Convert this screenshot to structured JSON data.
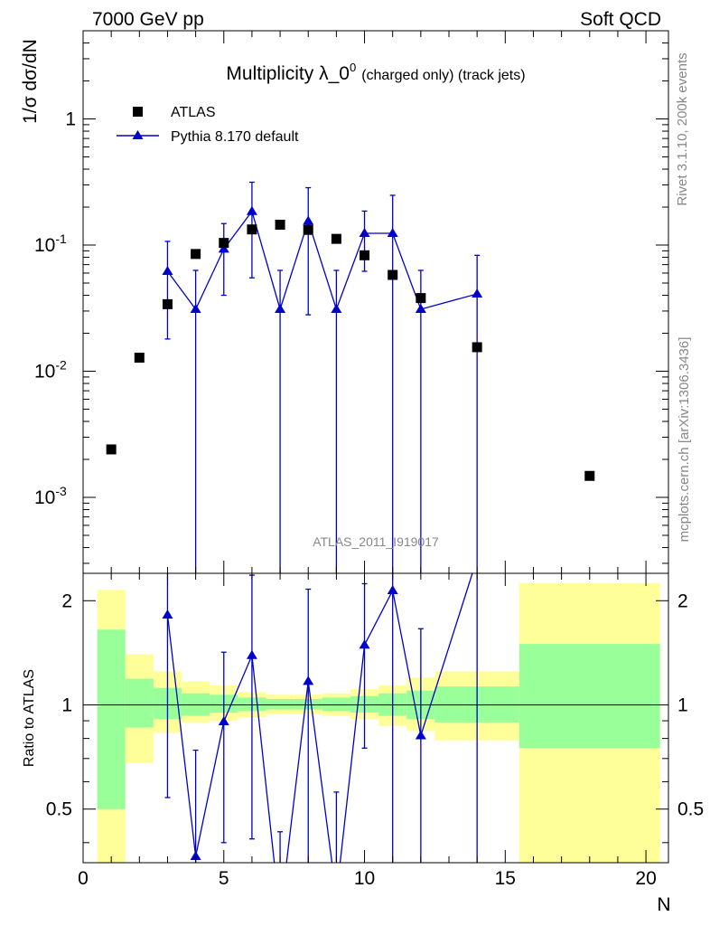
{
  "header": {
    "left": "7000 GeV pp",
    "right": "Soft QCD"
  },
  "side": {
    "rivet": "Rivet 3.1.10,  200k events",
    "url": "mcplots.cern.ch [arXiv:1306.3436]"
  },
  "colors": {
    "data": "#000000",
    "mc": "#0000cc",
    "band_inner": "#99ff99",
    "band_outer": "#ffff99"
  },
  "chart_data": [
    {
      "type": "scatter",
      "title_main": "Multiplicity λ_0",
      "title_sup": "0",
      "title_small": "(charged only) (track jets)",
      "ylabel": "1/σ dσ/dN",
      "watermark": "ATLAS_2011_I919017",
      "yscale": "log",
      "ylim": [
        0.00025,
        5
      ],
      "xlim": [
        0,
        20.8
      ],
      "yticks": [
        {
          "v": 0.001,
          "base": "10",
          "exp": "-3"
        },
        {
          "v": 0.01,
          "base": "10",
          "exp": "-2"
        },
        {
          "v": 0.1,
          "base": "10",
          "exp": "-1"
        },
        {
          "v": 1,
          "base": "1",
          "exp": ""
        }
      ],
      "legend": [
        {
          "label": "ATLAS",
          "marker": "square"
        },
        {
          "label": "Pythia 8.170 default",
          "marker": "triangle"
        }
      ],
      "series": [
        {
          "name": "ATLAS",
          "points": [
            {
              "x": 1,
              "y": 0.0024
            },
            {
              "x": 2,
              "y": 0.0128
            },
            {
              "x": 3,
              "y": 0.034
            },
            {
              "x": 4,
              "y": 0.085
            },
            {
              "x": 5,
              "y": 0.104
            },
            {
              "x": 6,
              "y": 0.133
            },
            {
              "x": 7,
              "y": 0.145
            },
            {
              "x": 8,
              "y": 0.132
            },
            {
              "x": 9,
              "y": 0.112
            },
            {
              "x": 10,
              "y": 0.083
            },
            {
              "x": 11,
              "y": 0.058
            },
            {
              "x": 12,
              "y": 0.038
            },
            {
              "x": 14,
              "y": 0.0155
            },
            {
              "x": 18,
              "y": 0.00148
            }
          ]
        },
        {
          "name": "Pythia 8.170 default",
          "points": [
            {
              "x": 3,
              "y": 0.062,
              "lo": 0.018,
              "hi": 0.107
            },
            {
              "x": 4,
              "y": 0.031,
              "lo": 1e-05,
              "hi": 0.063
            },
            {
              "x": 5,
              "y": 0.093,
              "lo": 0.04,
              "hi": 0.148
            },
            {
              "x": 6,
              "y": 0.185,
              "lo": 0.055,
              "hi": 0.315
            },
            {
              "x": 7,
              "y": 0.031,
              "lo": 1e-05,
              "hi": 0.063
            },
            {
              "x": 8,
              "y": 0.155,
              "lo": 0.028,
              "hi": 0.285
            },
            {
              "x": 9,
              "y": 0.031,
              "lo": 1e-05,
              "hi": 0.063
            },
            {
              "x": 10,
              "y": 0.124,
              "lo": 0.062,
              "hi": 0.186
            },
            {
              "x": 11,
              "y": 0.124,
              "lo": 1e-05,
              "hi": 0.248
            },
            {
              "x": 12,
              "y": 0.031,
              "lo": 1e-05,
              "hi": 0.063
            },
            {
              "x": 14,
              "y": 0.041,
              "lo": 1e-05,
              "hi": 0.083
            }
          ]
        }
      ]
    },
    {
      "type": "line",
      "ylabel": "Ratio to ATLAS",
      "xlabel": "N",
      "yscale": "log",
      "ylim": [
        0.35,
        2.4
      ],
      "xlim": [
        0,
        20.8
      ],
      "yticks": [
        0.5,
        1,
        2
      ],
      "xticks": [
        0,
        5,
        10,
        15,
        20
      ],
      "reference": 1,
      "bands": [
        {
          "x0": 0.5,
          "x1": 1.5,
          "in_lo": 0.5,
          "in_hi": 1.65,
          "out_lo": 0.3,
          "out_hi": 2.15
        },
        {
          "x0": 1.5,
          "x1": 2.5,
          "in_lo": 0.86,
          "in_hi": 1.19,
          "out_lo": 0.68,
          "out_hi": 1.4
        },
        {
          "x0": 2.5,
          "x1": 3.5,
          "in_lo": 0.91,
          "in_hi": 1.12,
          "out_lo": 0.83,
          "out_hi": 1.25
        },
        {
          "x0": 3.5,
          "x1": 4.5,
          "in_lo": 0.93,
          "in_hi": 1.08,
          "out_lo": 0.89,
          "out_hi": 1.17
        },
        {
          "x0": 4.5,
          "x1": 5.5,
          "in_lo": 0.95,
          "in_hi": 1.07,
          "out_lo": 0.9,
          "out_hi": 1.14
        },
        {
          "x0": 5.5,
          "x1": 6.5,
          "in_lo": 0.96,
          "in_hi": 1.05,
          "out_lo": 0.92,
          "out_hi": 1.09
        },
        {
          "x0": 6.5,
          "x1": 7.5,
          "in_lo": 0.97,
          "in_hi": 1.04,
          "out_lo": 0.94,
          "out_hi": 1.07
        },
        {
          "x0": 7.5,
          "x1": 8.5,
          "in_lo": 0.97,
          "in_hi": 1.04,
          "out_lo": 0.94,
          "out_hi": 1.07
        },
        {
          "x0": 8.5,
          "x1": 9.5,
          "in_lo": 0.96,
          "in_hi": 1.05,
          "out_lo": 0.93,
          "out_hi": 1.08
        },
        {
          "x0": 9.5,
          "x1": 10.5,
          "in_lo": 0.95,
          "in_hi": 1.06,
          "out_lo": 0.91,
          "out_hi": 1.11
        },
        {
          "x0": 10.5,
          "x1": 11.5,
          "in_lo": 0.93,
          "in_hi": 1.08,
          "out_lo": 0.87,
          "out_hi": 1.14
        },
        {
          "x0": 11.5,
          "x1": 12.5,
          "in_lo": 0.91,
          "in_hi": 1.1,
          "out_lo": 0.84,
          "out_hi": 1.2
        },
        {
          "x0": 12.5,
          "x1": 15.5,
          "in_lo": 0.89,
          "in_hi": 1.13,
          "out_lo": 0.79,
          "out_hi": 1.25
        },
        {
          "x0": 15.5,
          "x1": 20.5,
          "in_lo": 0.75,
          "in_hi": 1.5,
          "out_lo": 0.3,
          "out_hi": 2.25
        }
      ],
      "series": [
        {
          "name": "Pythia 8.170 default",
          "points": [
            {
              "x": 3,
              "y": 1.82,
              "lo": 0.54,
              "hi": 3.0
            },
            {
              "x": 4,
              "y": 0.365,
              "lo": 0.001,
              "hi": 0.74
            },
            {
              "x": 5,
              "y": 0.895,
              "lo": 0.4,
              "hi": 1.42
            },
            {
              "x": 6,
              "y": 1.39,
              "lo": 0.41,
              "hi": 2.37
            },
            {
              "x": 7,
              "y": 0.215,
              "lo": 0.001,
              "hi": 0.43
            },
            {
              "x": 8,
              "y": 1.17,
              "lo": 0.21,
              "hi": 2.16
            },
            {
              "x": 9,
              "y": 0.28,
              "lo": 0.001,
              "hi": 0.56
            },
            {
              "x": 10,
              "y": 1.49,
              "lo": 0.75,
              "hi": 2.24
            },
            {
              "x": 11,
              "y": 2.14,
              "lo": 0.001,
              "hi": 4.28
            },
            {
              "x": 12,
              "y": 0.815,
              "lo": 0.001,
              "hi": 1.66
            },
            {
              "x": 14,
              "y": 2.65,
              "lo": 0.001,
              "hi": 5.3
            }
          ]
        }
      ]
    }
  ]
}
